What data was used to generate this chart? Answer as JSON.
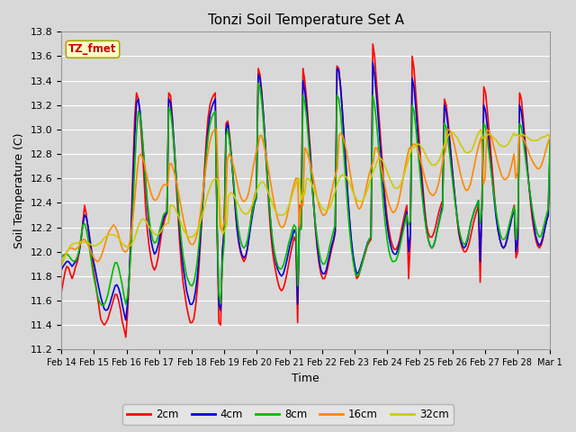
{
  "title": "Tonzi Soil Temperature Set A",
  "xlabel": "Time",
  "ylabel": "Soil Temperature (C)",
  "ylim": [
    11.2,
    13.8
  ],
  "x_tick_labels": [
    "Feb 14",
    "Feb 15",
    "Feb 16",
    "Feb 17",
    "Feb 18",
    "Feb 19",
    "Feb 20",
    "Feb 21",
    "Feb 22",
    "Feb 23",
    "Feb 24",
    "Feb 25",
    "Feb 26",
    "Feb 27",
    "Feb 28",
    "Mar 1"
  ],
  "background_color": "#d8d8d8",
  "plot_bg_color": "#d8d8d8",
  "grid_color": "#ffffff",
  "legend_label": "TZ_fmet",
  "legend_bg": "#ffffcc",
  "legend_border": "#aaa800",
  "series_colors": {
    "2cm": "#ff0000",
    "4cm": "#0000dd",
    "8cm": "#00bb00",
    "16cm": "#ff8800",
    "32cm": "#cccc00"
  },
  "lw": 1.2,
  "2cm": [
    11.67,
    11.75,
    11.83,
    11.88,
    11.87,
    11.82,
    11.78,
    11.82,
    11.88,
    11.92,
    12.0,
    12.1,
    12.24,
    12.38,
    12.3,
    12.18,
    12.05,
    11.95,
    11.85,
    11.75,
    11.65,
    11.55,
    11.45,
    11.42,
    11.4,
    11.42,
    11.45,
    11.5,
    11.55,
    11.6,
    11.65,
    11.65,
    11.6,
    11.53,
    11.43,
    11.37,
    11.3,
    11.5,
    11.8,
    12.2,
    12.68,
    13.1,
    13.3,
    13.25,
    13.1,
    12.9,
    12.65,
    12.38,
    12.18,
    12.05,
    11.95,
    11.88,
    11.85,
    11.88,
    11.95,
    12.05,
    12.15,
    12.22,
    12.28,
    12.32,
    13.3,
    13.28,
    13.1,
    12.85,
    12.6,
    12.35,
    12.1,
    11.9,
    11.75,
    11.65,
    11.55,
    11.48,
    11.42,
    11.42,
    11.45,
    11.55,
    11.7,
    11.9,
    12.15,
    12.4,
    12.68,
    12.92,
    13.1,
    13.2,
    13.25,
    13.28,
    13.3,
    12.2,
    11.42,
    11.4,
    12.0,
    12.2,
    13.05,
    13.07,
    12.95,
    12.8,
    12.6,
    12.38,
    12.2,
    12.08,
    12.0,
    11.95,
    11.92,
    11.95,
    12.03,
    12.15,
    12.28,
    12.38,
    12.46,
    12.5,
    13.5,
    13.45,
    13.3,
    13.1,
    12.85,
    12.6,
    12.35,
    12.15,
    12.0,
    11.9,
    11.82,
    11.75,
    11.7,
    11.68,
    11.7,
    11.75,
    11.82,
    11.9,
    11.98,
    12.05,
    12.12,
    12.08,
    11.42,
    12.38,
    12.35,
    13.5,
    13.4,
    13.25,
    13.05,
    12.85,
    12.6,
    12.38,
    12.18,
    12.02,
    11.9,
    11.82,
    11.78,
    11.78,
    11.82,
    11.88,
    11.95,
    12.02,
    12.08,
    12.15,
    13.52,
    13.5,
    13.35,
    13.15,
    12.92,
    12.7,
    12.45,
    12.25,
    12.08,
    11.95,
    11.85,
    11.78,
    11.8,
    11.85,
    11.9,
    11.95,
    12.0,
    12.05,
    12.08,
    12.1,
    13.7,
    13.6,
    13.4,
    13.2,
    13.0,
    12.8,
    12.6,
    12.42,
    12.28,
    12.18,
    12.1,
    12.05,
    12.02,
    12.02,
    12.05,
    12.1,
    12.18,
    12.25,
    12.32,
    12.38,
    11.78,
    12.1,
    13.6,
    13.5,
    13.3,
    13.1,
    12.9,
    12.7,
    12.52,
    12.35,
    12.22,
    12.15,
    12.12,
    12.12,
    12.15,
    12.2,
    12.27,
    12.33,
    12.38,
    12.42,
    13.25,
    13.2,
    13.08,
    12.92,
    12.75,
    12.58,
    12.42,
    12.28,
    12.15,
    12.08,
    12.03,
    12.0,
    12.0,
    12.03,
    12.08,
    12.15,
    12.22,
    12.28,
    12.33,
    12.38,
    11.75,
    12.4,
    13.35,
    13.3,
    13.15,
    12.98,
    12.8,
    12.62,
    12.45,
    12.3,
    12.18,
    12.1,
    12.05,
    12.03,
    12.05,
    12.1,
    12.18,
    12.25,
    12.32,
    12.38,
    11.95,
    12.0,
    13.3,
    13.25,
    13.1,
    12.92,
    12.75,
    12.58,
    12.42,
    12.28,
    12.18,
    12.1,
    12.05,
    12.03,
    12.05,
    12.1,
    12.18,
    12.25,
    12.3,
    12.8
  ],
  "4cm": [
    11.85,
    11.88,
    11.9,
    11.92,
    11.92,
    11.9,
    11.88,
    11.9,
    11.92,
    11.95,
    12.0,
    12.1,
    12.22,
    12.3,
    12.28,
    12.2,
    12.1,
    12.0,
    11.92,
    11.85,
    11.77,
    11.7,
    11.63,
    11.58,
    11.53,
    11.52,
    11.53,
    11.57,
    11.62,
    11.67,
    11.72,
    11.73,
    11.7,
    11.65,
    11.57,
    11.5,
    11.44,
    11.58,
    11.82,
    12.15,
    12.55,
    12.95,
    13.22,
    13.25,
    13.15,
    12.98,
    12.78,
    12.57,
    12.38,
    12.22,
    12.1,
    12.03,
    11.98,
    12.0,
    12.05,
    12.12,
    12.2,
    12.27,
    12.3,
    12.32,
    13.25,
    13.22,
    13.08,
    12.88,
    12.65,
    12.42,
    12.2,
    12.02,
    11.88,
    11.78,
    11.68,
    11.62,
    11.57,
    11.57,
    11.6,
    11.68,
    11.8,
    11.98,
    12.18,
    12.4,
    12.62,
    12.83,
    13.0,
    13.12,
    13.18,
    13.22,
    13.25,
    12.22,
    11.57,
    11.52,
    12.0,
    12.17,
    13.0,
    13.05,
    12.92,
    12.77,
    12.6,
    12.4,
    12.22,
    12.1,
    12.02,
    11.97,
    11.95,
    11.97,
    12.03,
    12.13,
    12.23,
    12.32,
    12.4,
    12.44,
    13.45,
    13.42,
    13.28,
    13.1,
    12.88,
    12.65,
    12.42,
    12.22,
    12.07,
    11.98,
    11.9,
    11.85,
    11.82,
    11.8,
    11.82,
    11.87,
    11.93,
    12.0,
    12.07,
    12.12,
    12.18,
    12.15,
    11.57,
    12.22,
    12.2,
    13.4,
    13.32,
    13.18,
    12.98,
    12.8,
    12.58,
    12.38,
    12.2,
    12.05,
    11.93,
    11.85,
    11.82,
    11.82,
    11.85,
    11.92,
    11.98,
    12.05,
    12.1,
    12.17,
    13.5,
    13.48,
    13.35,
    13.15,
    12.92,
    12.7,
    12.47,
    12.27,
    12.1,
    11.97,
    11.88,
    11.82,
    11.83,
    11.87,
    11.92,
    11.97,
    12.02,
    12.07,
    12.1,
    12.12,
    13.55,
    13.45,
    13.28,
    13.1,
    12.9,
    12.7,
    12.52,
    12.35,
    12.22,
    12.12,
    12.05,
    12.0,
    11.98,
    11.98,
    12.02,
    12.07,
    12.13,
    12.2,
    12.27,
    12.33,
    12.0,
    12.15,
    13.42,
    13.35,
    13.18,
    12.98,
    12.8,
    12.62,
    12.45,
    12.3,
    12.18,
    12.1,
    12.05,
    12.03,
    12.05,
    12.1,
    12.18,
    12.25,
    12.32,
    12.38,
    13.2,
    13.15,
    13.03,
    12.88,
    12.72,
    12.57,
    12.43,
    12.3,
    12.18,
    12.1,
    12.05,
    12.03,
    12.05,
    12.1,
    12.18,
    12.25,
    12.3,
    12.35,
    12.38,
    12.42,
    11.92,
    12.4,
    13.2,
    13.15,
    13.02,
    12.87,
    12.7,
    12.55,
    12.4,
    12.27,
    12.17,
    12.1,
    12.05,
    12.03,
    12.05,
    12.1,
    12.17,
    12.23,
    12.3,
    12.35,
    12.0,
    12.1,
    13.2,
    13.15,
    13.02,
    12.87,
    12.72,
    12.58,
    12.45,
    12.33,
    12.22,
    12.13,
    12.08,
    12.05,
    12.07,
    12.12,
    12.18,
    12.25,
    12.3,
    12.8
  ],
  "8cm": [
    11.95,
    11.97,
    11.98,
    11.98,
    11.97,
    11.95,
    11.93,
    11.92,
    11.93,
    11.96,
    12.02,
    12.12,
    12.22,
    12.23,
    12.18,
    12.1,
    12.0,
    11.9,
    11.8,
    11.73,
    11.65,
    11.6,
    11.57,
    11.56,
    11.57,
    11.6,
    11.65,
    11.72,
    11.79,
    11.86,
    11.91,
    11.91,
    11.87,
    11.8,
    11.73,
    11.64,
    11.57,
    11.64,
    11.8,
    12.03,
    12.37,
    12.7,
    12.98,
    13.15,
    13.12,
    12.98,
    12.8,
    12.6,
    12.42,
    12.28,
    12.17,
    12.1,
    12.07,
    12.08,
    12.12,
    12.18,
    12.24,
    12.3,
    12.32,
    12.33,
    13.18,
    13.15,
    13.02,
    12.84,
    12.64,
    12.44,
    12.25,
    12.1,
    11.97,
    11.88,
    11.8,
    11.76,
    11.73,
    11.72,
    11.75,
    11.82,
    11.93,
    12.08,
    12.25,
    12.43,
    12.62,
    12.8,
    12.94,
    13.04,
    13.1,
    13.13,
    13.15,
    12.22,
    11.65,
    11.58,
    11.9,
    12.08,
    12.95,
    13.0,
    12.9,
    12.77,
    12.62,
    12.45,
    12.3,
    12.18,
    12.1,
    12.05,
    12.03,
    12.05,
    12.1,
    12.18,
    12.27,
    12.35,
    12.42,
    12.45,
    13.38,
    13.35,
    13.22,
    13.04,
    12.83,
    12.62,
    12.42,
    12.24,
    12.1,
    12.0,
    11.93,
    11.88,
    11.86,
    11.86,
    11.89,
    11.94,
    12.0,
    12.07,
    12.12,
    12.18,
    12.22,
    12.2,
    11.72,
    12.2,
    12.18,
    13.28,
    13.22,
    13.1,
    12.92,
    12.74,
    12.55,
    12.37,
    12.22,
    12.1,
    12.0,
    11.93,
    11.9,
    11.9,
    11.93,
    11.98,
    12.05,
    12.11,
    12.17,
    12.22,
    13.28,
    13.25,
    13.14,
    12.96,
    12.76,
    12.56,
    12.36,
    12.18,
    12.03,
    11.92,
    11.84,
    11.8,
    11.81,
    11.85,
    11.9,
    11.96,
    12.01,
    12.06,
    12.1,
    12.12,
    13.28,
    13.2,
    13.07,
    12.9,
    12.72,
    12.54,
    12.37,
    12.22,
    12.1,
    12.01,
    11.95,
    11.92,
    11.92,
    11.93,
    11.97,
    12.03,
    12.1,
    12.17,
    12.24,
    12.3,
    12.22,
    12.25,
    13.2,
    13.15,
    13.02,
    12.86,
    12.7,
    12.54,
    12.4,
    12.27,
    12.17,
    12.1,
    12.05,
    12.03,
    12.05,
    12.1,
    12.17,
    12.23,
    12.3,
    12.35,
    13.05,
    13.02,
    12.92,
    12.79,
    12.65,
    12.52,
    12.4,
    12.29,
    12.2,
    12.13,
    12.08,
    12.06,
    12.07,
    12.12,
    12.18,
    12.25,
    12.3,
    12.35,
    12.38,
    12.42,
    12.23,
    12.35,
    13.05,
    13.02,
    12.92,
    12.8,
    12.67,
    12.55,
    12.43,
    12.32,
    12.23,
    12.16,
    12.11,
    12.1,
    12.11,
    12.15,
    12.21,
    12.27,
    12.32,
    12.37,
    12.1,
    12.22,
    13.05,
    13.02,
    12.92,
    12.8,
    12.68,
    12.57,
    12.46,
    12.36,
    12.27,
    12.2,
    12.15,
    12.12,
    12.13,
    12.18,
    12.24,
    12.3,
    12.35,
    12.92
  ],
  "16cm": [
    11.88,
    11.93,
    11.97,
    12.0,
    12.02,
    12.03,
    12.03,
    12.02,
    12.02,
    12.03,
    12.05,
    12.08,
    12.1,
    12.1,
    12.08,
    12.05,
    12.02,
    11.98,
    11.95,
    11.93,
    11.92,
    11.93,
    11.96,
    12.0,
    12.05,
    12.1,
    12.15,
    12.18,
    12.2,
    12.22,
    12.2,
    12.17,
    12.12,
    12.06,
    12.02,
    12.0,
    12.0,
    12.02,
    12.08,
    12.18,
    12.32,
    12.48,
    12.65,
    12.78,
    12.8,
    12.77,
    12.72,
    12.65,
    12.58,
    12.52,
    12.47,
    12.43,
    12.42,
    12.43,
    12.46,
    12.5,
    12.53,
    12.55,
    12.55,
    12.54,
    12.72,
    12.72,
    12.68,
    12.63,
    12.56,
    12.48,
    12.4,
    12.32,
    12.24,
    12.18,
    12.12,
    12.08,
    12.06,
    12.06,
    12.08,
    12.13,
    12.2,
    12.3,
    12.42,
    12.55,
    12.67,
    12.78,
    12.87,
    12.94,
    12.98,
    13.0,
    13.0,
    12.6,
    12.2,
    12.17,
    12.22,
    12.3,
    12.75,
    12.8,
    12.78,
    12.73,
    12.67,
    12.6,
    12.53,
    12.47,
    12.43,
    12.41,
    12.42,
    12.44,
    12.49,
    12.57,
    12.66,
    12.74,
    12.81,
    12.85,
    12.95,
    12.95,
    12.9,
    12.83,
    12.75,
    12.66,
    12.57,
    12.48,
    12.4,
    12.33,
    12.27,
    12.22,
    12.2,
    12.2,
    12.23,
    12.28,
    12.35,
    12.42,
    12.49,
    12.55,
    12.6,
    12.6,
    12.2,
    12.4,
    12.38,
    12.85,
    12.83,
    12.78,
    12.72,
    12.65,
    12.58,
    12.5,
    12.43,
    12.37,
    12.33,
    12.3,
    12.3,
    12.32,
    12.37,
    12.43,
    12.5,
    12.57,
    12.63,
    12.68,
    12.95,
    12.97,
    12.95,
    12.9,
    12.83,
    12.75,
    12.66,
    12.57,
    12.49,
    12.43,
    12.38,
    12.35,
    12.36,
    12.4,
    12.45,
    12.52,
    12.59,
    12.65,
    12.7,
    12.74,
    12.85,
    12.85,
    12.8,
    12.73,
    12.65,
    12.57,
    12.5,
    12.43,
    12.38,
    12.34,
    12.32,
    12.33,
    12.36,
    12.41,
    12.48,
    12.56,
    12.64,
    12.72,
    12.79,
    12.85,
    12.85,
    12.88,
    12.88,
    12.87,
    12.82,
    12.76,
    12.7,
    12.64,
    12.58,
    12.53,
    12.49,
    12.47,
    12.46,
    12.47,
    12.5,
    12.55,
    12.62,
    12.7,
    12.77,
    12.83,
    13.0,
    13.0,
    12.98,
    12.93,
    12.87,
    12.8,
    12.73,
    12.66,
    12.6,
    12.55,
    12.51,
    12.5,
    12.52,
    12.56,
    12.63,
    12.7,
    12.78,
    12.84,
    12.9,
    12.94,
    12.55,
    12.6,
    13.0,
    12.99,
    12.96,
    12.91,
    12.85,
    12.79,
    12.73,
    12.68,
    12.63,
    12.6,
    12.59,
    12.6,
    12.62,
    12.67,
    12.73,
    12.8,
    12.6,
    12.65,
    12.95,
    12.95,
    12.93,
    12.9,
    12.86,
    12.82,
    12.78,
    12.75,
    12.72,
    12.7,
    12.68,
    12.68,
    12.7,
    12.74,
    12.79,
    12.85,
    12.9,
    12.93
  ],
  "32cm": [
    11.88,
    11.92,
    11.96,
    11.99,
    12.02,
    12.05,
    12.06,
    12.07,
    12.07,
    12.07,
    12.08,
    12.08,
    12.08,
    12.08,
    12.07,
    12.07,
    12.06,
    12.05,
    12.05,
    12.05,
    12.06,
    12.07,
    12.08,
    12.1,
    12.12,
    12.13,
    12.14,
    12.14,
    12.14,
    12.14,
    12.13,
    12.12,
    12.1,
    12.08,
    12.06,
    12.05,
    12.04,
    12.04,
    12.05,
    12.07,
    12.1,
    12.14,
    12.19,
    12.23,
    12.26,
    12.27,
    12.26,
    12.24,
    12.21,
    12.19,
    12.17,
    12.15,
    12.14,
    12.14,
    12.15,
    12.17,
    12.2,
    12.22,
    12.23,
    12.23,
    12.38,
    12.38,
    12.37,
    12.34,
    12.31,
    12.27,
    12.23,
    12.19,
    12.16,
    12.14,
    12.12,
    12.12,
    12.12,
    12.13,
    12.15,
    12.18,
    12.22,
    12.27,
    12.32,
    12.38,
    12.44,
    12.49,
    12.53,
    12.57,
    12.59,
    12.6,
    12.59,
    12.45,
    12.2,
    12.15,
    12.18,
    12.22,
    12.45,
    12.48,
    12.48,
    12.46,
    12.43,
    12.4,
    12.37,
    12.34,
    12.32,
    12.31,
    12.31,
    12.32,
    12.35,
    12.38,
    12.43,
    12.48,
    12.52,
    12.55,
    12.57,
    12.57,
    12.55,
    12.52,
    12.48,
    12.44,
    12.4,
    12.36,
    12.33,
    12.31,
    12.3,
    12.3,
    12.3,
    12.31,
    12.33,
    12.37,
    12.41,
    12.46,
    12.51,
    12.55,
    12.59,
    12.6,
    12.42,
    12.48,
    12.47,
    12.6,
    12.6,
    12.58,
    12.55,
    12.51,
    12.47,
    12.43,
    12.4,
    12.37,
    12.35,
    12.34,
    12.34,
    12.35,
    12.37,
    12.41,
    12.46,
    12.51,
    12.56,
    12.6,
    12.62,
    12.63,
    12.62,
    12.61,
    12.58,
    12.55,
    12.51,
    12.47,
    12.44,
    12.42,
    12.41,
    12.41,
    12.42,
    12.45,
    12.49,
    12.53,
    12.58,
    12.63,
    12.67,
    12.7,
    12.75,
    12.77,
    12.76,
    12.74,
    12.7,
    12.67,
    12.63,
    12.59,
    12.56,
    12.53,
    12.52,
    12.52,
    12.53,
    12.56,
    12.6,
    12.65,
    12.7,
    12.75,
    12.8,
    12.85,
    12.85,
    12.87,
    12.88,
    12.88,
    12.86,
    12.84,
    12.81,
    12.78,
    12.75,
    12.73,
    12.71,
    12.71,
    12.71,
    12.73,
    12.75,
    12.79,
    12.84,
    12.88,
    12.92,
    12.95,
    12.97,
    12.98,
    12.97,
    12.95,
    12.93,
    12.9,
    12.87,
    12.85,
    12.82,
    12.81,
    12.81,
    12.82,
    12.83,
    12.87,
    12.91,
    12.95,
    12.98,
    13.0,
    12.93,
    12.93,
    12.95,
    12.96,
    12.96,
    12.95,
    12.93,
    12.92,
    12.9,
    12.88,
    12.87,
    12.86,
    12.86,
    12.87,
    12.88,
    12.91,
    12.94,
    12.97,
    12.95,
    12.96,
    12.95,
    12.96,
    12.96,
    12.95,
    12.94,
    12.93,
    12.92,
    12.91,
    12.91,
    12.91,
    12.91,
    12.92,
    12.93,
    12.94,
    12.94,
    12.95,
    12.96,
    12.93
  ]
}
